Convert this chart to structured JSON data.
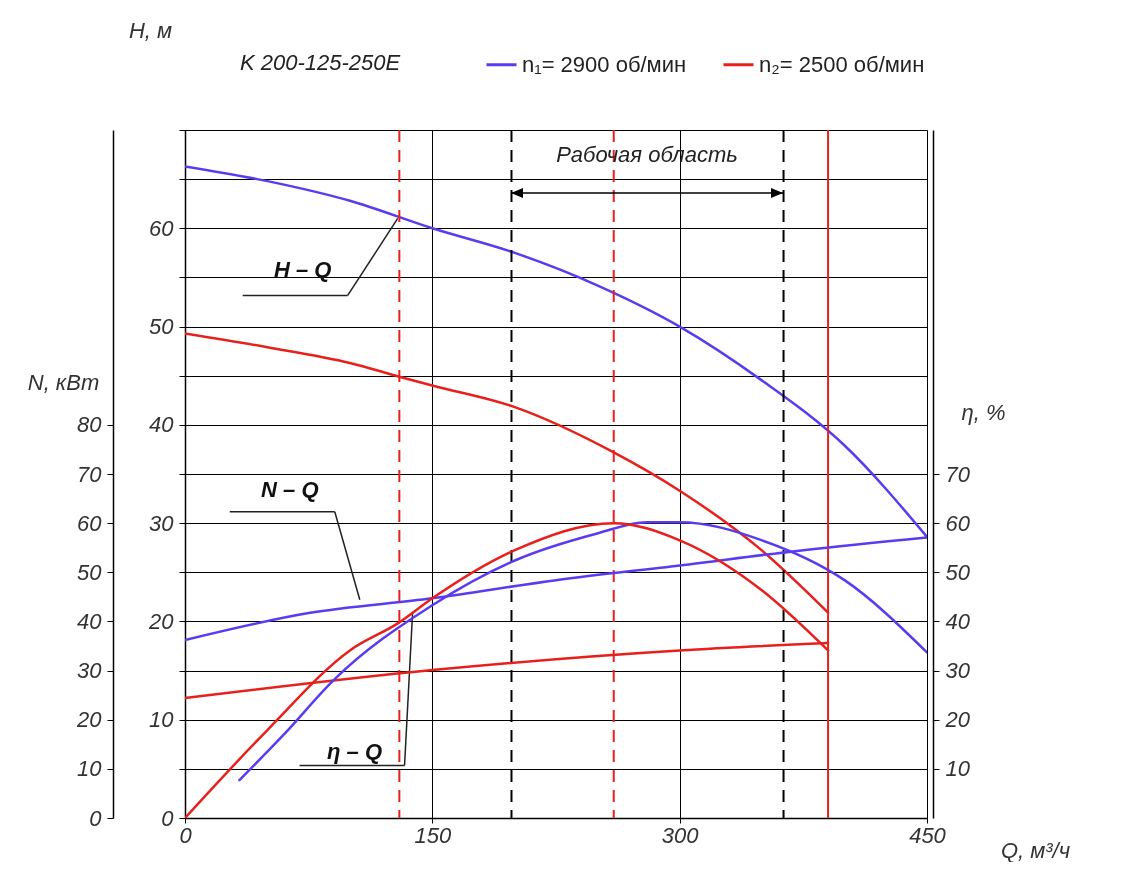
{
  "chart_data": {
    "type": "line",
    "title": "K 200-125-250E",
    "xlabel": "Q, м³/ч",
    "ylabel": "H, м",
    "y2label": "N, кВт",
    "y3label": "η, %",
    "xlim": [
      0,
      450
    ],
    "xticks": [
      0,
      150,
      300,
      450
    ],
    "ylim": [
      0,
      70
    ],
    "yticks": [
      0,
      {
        "value": 5,
        "label": null
      },
      10,
      {
        "value": 15,
        "label": null
      },
      20,
      {
        "value": 25,
        "label": null
      },
      30,
      {
        "value": 35,
        "label": null
      },
      40,
      {
        "value": 45,
        "label": null
      },
      50,
      {
        "value": 55,
        "label": null
      },
      60,
      {
        "value": 65,
        "label": null
      },
      {
        "value": 70,
        "label": null
      }
    ],
    "y2lim": [
      0,
      140
    ],
    "y2ticks": [
      0,
      10,
      20,
      30,
      40,
      50,
      60,
      70,
      80
    ],
    "y3lim": [
      0,
      140
    ],
    "y3ticks": [
      10,
      20,
      30,
      40,
      50,
      60,
      70
    ],
    "grid": true,
    "legend": "top",
    "series": [
      {
        "name": "n₁= 2900 об/мин",
        "color": "#5a3cf0",
        "x": [
          0,
          50,
          100,
          150,
          200,
          250,
          300,
          350,
          400,
          450
        ],
        "values": [
          66.3,
          64.8,
          62.8,
          60,
          57.5,
          54.2,
          50,
          44.5,
          37.9,
          28.6
        ]
      },
      {
        "name": "n₂= 2500 об/мин",
        "color": "#e8201c",
        "x": [
          0,
          50,
          100,
          130,
          150,
          200,
          260,
          300,
          350,
          390
        ],
        "values": [
          49.3,
          47.9,
          46.3,
          44.9,
          44,
          41.8,
          37.2,
          33.3,
          27.2,
          20.9
        ]
      },
      {
        "color": "#5a3cf0",
        "axis": "y2",
        "x": [
          0,
          75,
          150,
          225,
          300,
          375,
          450
        ],
        "values": [
          36.2,
          41.7,
          44.7,
          48.4,
          51.4,
          54.5,
          57.1
        ]
      },
      {
        "color": "#e8201c",
        "axis": "y2",
        "x": [
          0,
          150,
          300,
          390
        ],
        "values": [
          24.4,
          30.1,
          34.1,
          35.6
        ]
      },
      {
        "color": "#5a3cf0",
        "axis": "y3",
        "x": [
          33,
          60,
          90,
          150,
          200,
          250,
          280,
          300,
          350,
          400,
          450
        ],
        "values": [
          7.7,
          17,
          28,
          43.3,
          52.4,
          57.9,
          60.2,
          60.2,
          56.5,
          48.4,
          33.7
        ]
      },
      {
        "color": "#e8201c",
        "axis": "y3",
        "x": [
          0,
          50,
          100,
          130,
          150,
          200,
          260,
          300,
          350,
          390
        ],
        "values": [
          0,
          17.9,
          34.1,
          39.8,
          44.7,
          54.5,
          60,
          56.5,
          46.3,
          34.1
        ]
      }
    ],
    "ref_lines": [
      {
        "axis": "x",
        "value": 130,
        "color": "#e8201c",
        "line_style": "dashed"
      },
      {
        "axis": "x",
        "value": 260,
        "color": "#e8201c",
        "line_style": "dashed"
      },
      {
        "axis": "x",
        "value": 390,
        "color": "#e8201c",
        "line_style": "solid"
      },
      {
        "axis": "x",
        "value": 198,
        "color": "#000000",
        "line_style": "dashed"
      },
      {
        "axis": "x",
        "value": 363,
        "color": "#000000",
        "line_style": "dashed"
      }
    ],
    "annotations": [
      "Рабочая область",
      {
        "text": "H – Q",
        "x": 129,
        "y": 61
      },
      {
        "text": "N – Q",
        "x": 106,
        "y": 22.2
      },
      {
        "text": "η – Q",
        "x": 138,
        "y": 20.8
      }
    ]
  }
}
